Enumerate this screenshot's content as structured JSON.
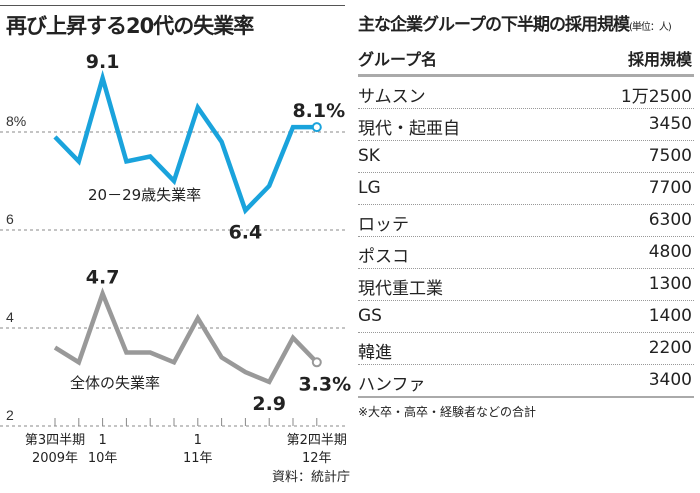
{
  "chart_data": {
    "type": "line",
    "title": "再び上昇する20代の失業率",
    "x_tick_labels": [
      {
        "index": 0,
        "line1": "第3四半期",
        "line2": "2009年"
      },
      {
        "index": 2,
        "line1": "1",
        "line2": "10年"
      },
      {
        "index": 6,
        "line1": "1",
        "line2": "11年"
      },
      {
        "index": 11,
        "line1": "第2四半期",
        "line2": "12年"
      }
    ],
    "y_ticks": [
      {
        "value": 8,
        "label": "8%"
      },
      {
        "value": 6,
        "label": "6"
      },
      {
        "value": 4,
        "label": "4"
      },
      {
        "value": 2,
        "label": "2"
      }
    ],
    "ylim": [
      2,
      9.6
    ],
    "grid": "dashed horizontal at ticks",
    "series": [
      {
        "name": "20－29歳失業率",
        "color": "#1aa3dc",
        "values": [
          7.9,
          7.4,
          9.1,
          7.4,
          7.5,
          7.0,
          8.5,
          7.8,
          6.4,
          6.9,
          8.1,
          8.1
        ],
        "annotations": [
          {
            "index": 2,
            "label": "9.1"
          },
          {
            "index": 8,
            "label": "6.4"
          },
          {
            "index": 11,
            "label": "8.1%"
          }
        ]
      },
      {
        "name": "全体の失業率",
        "color": "#999999",
        "values": [
          3.6,
          3.3,
          4.7,
          3.5,
          3.5,
          3.3,
          4.2,
          3.4,
          3.1,
          2.9,
          3.8,
          3.3
        ],
        "annotations": [
          {
            "index": 2,
            "label": "4.7"
          },
          {
            "index": 9,
            "label": "2.9"
          },
          {
            "index": 11,
            "label": "3.3%"
          }
        ]
      }
    ],
    "source": "資料：統計庁"
  },
  "table": {
    "title": "主な企業グループの下半期の採用規模",
    "unit": "(単位：人)",
    "headers": [
      "グループ名",
      "採用規模"
    ],
    "rows": [
      [
        "サムスン",
        "1万2500"
      ],
      [
        "現代・起亜自",
        "3450"
      ],
      [
        "SK",
        "7500"
      ],
      [
        "LG",
        "7700"
      ],
      [
        "ロッテ",
        "6300"
      ],
      [
        "ポスコ",
        "4800"
      ],
      [
        "現代重工業",
        "1300"
      ],
      [
        "GS",
        "1400"
      ],
      [
        "韓進",
        "2200"
      ],
      [
        "ハンファ",
        "3400"
      ]
    ],
    "note": "※大卒・高卒・経験者などの合計"
  }
}
